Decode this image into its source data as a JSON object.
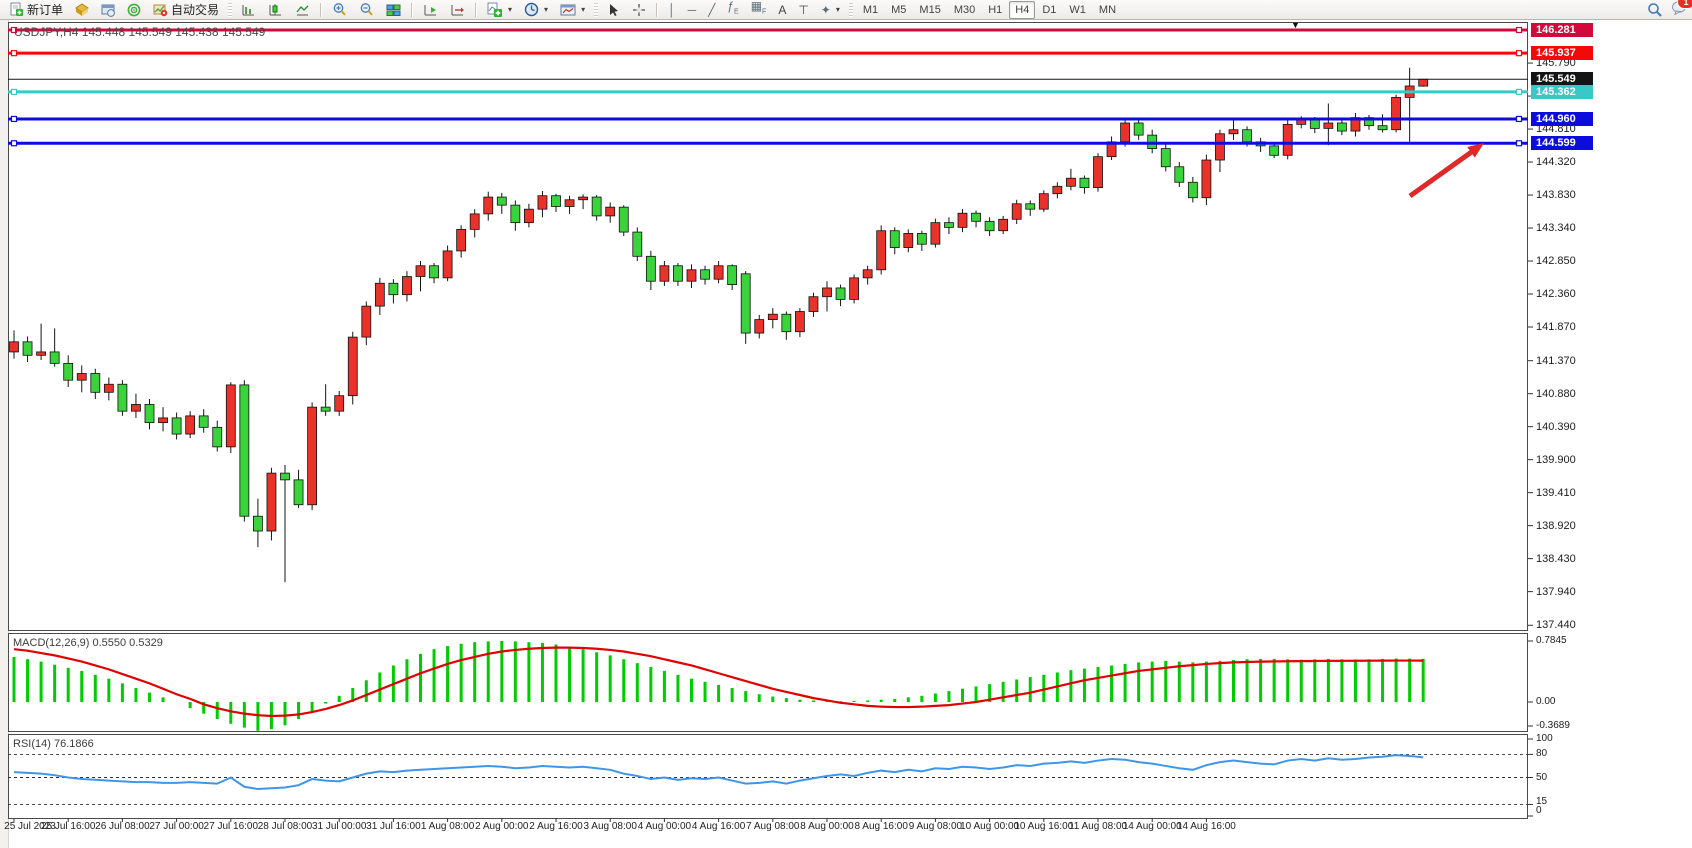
{
  "toolbar": {
    "new_order_label": "新订单",
    "autotrade_label": "自动交易",
    "timeframes": [
      "M1",
      "M5",
      "M15",
      "M30",
      "H1",
      "H4",
      "D1",
      "W1",
      "MN"
    ],
    "active_timeframe": "H4",
    "notification_count": "1",
    "icons": [
      "new-order-icon",
      "market-watch-icon",
      "data-window-icon",
      "navigator-icon",
      "autotrade-icon",
      "bar-chart-icon",
      "candlestick-chart-icon",
      "line-chart-icon",
      "zoom-in-icon",
      "zoom-out-icon",
      "tile-windows-icon",
      "auto-scroll-icon",
      "chart-shift-icon",
      "add-indicator-icon",
      "periods-icon",
      "templates-icon",
      "cursor-icon",
      "crosshair-icon",
      "vertical-line-icon",
      "horizontal-line-icon",
      "trendline-icon",
      "channel-icon",
      "fibonacci-icon",
      "text-icon",
      "text-label-icon",
      "shapes-icon",
      "search-icon",
      "notifications-icon"
    ]
  },
  "chart_data": {
    "type": "candlestick",
    "symbol": "USDJPY",
    "period": "H4",
    "title": "USDJPY,H4 145.448 145.549 145.438 145.549",
    "current_bar": {
      "open": "145.448",
      "high": "145.549",
      "low": "145.438",
      "close": "145.549"
    },
    "price_axis": {
      "ylim": [
        137.37,
        146.4
      ],
      "ticks": [
        "145.790",
        "145.300",
        "144.810",
        "144.320",
        "143.830",
        "143.340",
        "142.850",
        "142.360",
        "141.870",
        "141.370",
        "140.880",
        "140.390",
        "139.900",
        "139.410",
        "138.920",
        "138.430",
        "137.940",
        "137.440"
      ]
    },
    "hlines": [
      {
        "label": "146.281",
        "price": 146.281,
        "color": "#d20a3c",
        "width": 3,
        "handles": true
      },
      {
        "label": "145.937",
        "price": 145.937,
        "color": "#f40808",
        "width": 3,
        "handles": true
      },
      {
        "label": "145.549",
        "price": 145.549,
        "color": "#141414",
        "width": 1,
        "handles": false
      },
      {
        "label": "145.362",
        "price": 145.362,
        "color": "#38c8c8",
        "width": 3,
        "handles": true
      },
      {
        "label": "144.960",
        "price": 144.96,
        "color": "#0c0cdc",
        "width": 3,
        "handles": true
      },
      {
        "label": "144.599",
        "price": 144.599,
        "color": "#0c0cdc",
        "width": 3,
        "handles": true
      }
    ],
    "candles_ohlc": [
      [
        141.5,
        141.82,
        141.4,
        141.65
      ],
      [
        141.65,
        141.73,
        141.35,
        141.45
      ],
      [
        141.45,
        141.92,
        141.38,
        141.5
      ],
      [
        141.5,
        141.85,
        141.28,
        141.33
      ],
      [
        141.33,
        141.45,
        140.98,
        141.08
      ],
      [
        141.08,
        141.3,
        140.9,
        141.18
      ],
      [
        141.18,
        141.25,
        140.8,
        140.9
      ],
      [
        140.9,
        141.12,
        140.78,
        141.02
      ],
      [
        141.02,
        141.08,
        140.55,
        140.62
      ],
      [
        140.62,
        140.88,
        140.52,
        140.72
      ],
      [
        140.72,
        140.8,
        140.35,
        140.45
      ],
      [
        140.45,
        140.68,
        140.32,
        140.52
      ],
      [
        140.52,
        140.6,
        140.2,
        140.28
      ],
      [
        140.28,
        140.62,
        140.22,
        140.55
      ],
      [
        140.55,
        140.65,
        140.3,
        140.38
      ],
      [
        140.38,
        140.48,
        140.02,
        140.09
      ],
      [
        140.09,
        141.05,
        140.0,
        141.01
      ],
      [
        141.01,
        141.08,
        138.98,
        139.06
      ],
      [
        139.06,
        139.32,
        138.6,
        138.84
      ],
      [
        138.84,
        139.78,
        138.7,
        139.7
      ],
      [
        139.7,
        139.82,
        138.08,
        139.6
      ],
      [
        139.6,
        139.75,
        139.18,
        139.23
      ],
      [
        139.23,
        140.75,
        139.15,
        140.68
      ],
      [
        140.68,
        141.02,
        140.55,
        140.62
      ],
      [
        140.62,
        140.92,
        140.55,
        140.85
      ],
      [
        140.85,
        141.8,
        140.72,
        141.72
      ],
      [
        141.72,
        142.25,
        141.6,
        142.18
      ],
      [
        142.18,
        142.6,
        142.05,
        142.52
      ],
      [
        142.52,
        142.58,
        142.22,
        142.35
      ],
      [
        142.35,
        142.7,
        142.25,
        142.62
      ],
      [
        142.62,
        142.85,
        142.4,
        142.78
      ],
      [
        142.78,
        142.82,
        142.52,
        142.6
      ],
      [
        142.6,
        143.08,
        142.55,
        143.0
      ],
      [
        143.0,
        143.38,
        142.9,
        143.32
      ],
      [
        143.32,
        143.62,
        143.2,
        143.55
      ],
      [
        143.55,
        143.88,
        143.45,
        143.8
      ],
      [
        143.8,
        143.86,
        143.55,
        143.68
      ],
      [
        143.68,
        143.75,
        143.3,
        143.42
      ],
      [
        143.42,
        143.7,
        143.35,
        143.62
      ],
      [
        143.62,
        143.89,
        143.5,
        143.82
      ],
      [
        143.82,
        143.85,
        143.58,
        143.66
      ],
      [
        143.66,
        143.82,
        143.55,
        143.76
      ],
      [
        143.76,
        143.84,
        143.62,
        143.8
      ],
      [
        143.8,
        143.83,
        143.45,
        143.52
      ],
      [
        143.52,
        143.72,
        143.42,
        143.65
      ],
      [
        143.65,
        143.68,
        143.22,
        143.28
      ],
      [
        143.28,
        143.35,
        142.85,
        142.92
      ],
      [
        142.92,
        143.0,
        142.42,
        142.55
      ],
      [
        142.55,
        142.85,
        142.48,
        142.78
      ],
      [
        142.78,
        142.82,
        142.48,
        142.55
      ],
      [
        142.55,
        142.8,
        142.45,
        142.72
      ],
      [
        142.72,
        142.78,
        142.5,
        142.58
      ],
      [
        142.58,
        142.85,
        142.52,
        142.78
      ],
      [
        142.78,
        142.8,
        142.42,
        142.5
      ],
      [
        142.66,
        142.7,
        141.62,
        141.78
      ],
      [
        141.78,
        142.05,
        141.7,
        141.98
      ],
      [
        141.98,
        142.15,
        141.85,
        142.06
      ],
      [
        142.06,
        142.1,
        141.68,
        141.8
      ],
      [
        141.8,
        142.15,
        141.72,
        142.1
      ],
      [
        142.1,
        142.38,
        142.02,
        142.32
      ],
      [
        142.32,
        142.55,
        142.1,
        142.45
      ],
      [
        142.45,
        142.5,
        142.18,
        142.28
      ],
      [
        142.28,
        142.65,
        142.22,
        142.6
      ],
      [
        142.6,
        142.78,
        142.5,
        142.72
      ],
      [
        142.72,
        143.38,
        142.65,
        143.3
      ],
      [
        143.3,
        143.35,
        142.95,
        143.05
      ],
      [
        143.05,
        143.32,
        142.98,
        143.26
      ],
      [
        143.26,
        143.3,
        143.0,
        143.1
      ],
      [
        143.1,
        143.48,
        143.05,
        143.42
      ],
      [
        143.42,
        143.5,
        143.25,
        143.35
      ],
      [
        143.35,
        143.62,
        143.28,
        143.56
      ],
      [
        143.56,
        143.6,
        143.35,
        143.44
      ],
      [
        143.44,
        143.5,
        143.22,
        143.3
      ],
      [
        143.3,
        143.52,
        143.25,
        143.47
      ],
      [
        143.47,
        143.76,
        143.4,
        143.7
      ],
      [
        143.7,
        143.75,
        143.52,
        143.62
      ],
      [
        143.62,
        143.9,
        143.58,
        143.85
      ],
      [
        143.85,
        144.02,
        143.78,
        143.96
      ],
      [
        143.96,
        144.22,
        143.9,
        144.08
      ],
      [
        144.08,
        144.12,
        143.85,
        143.94
      ],
      [
        143.94,
        144.45,
        143.88,
        144.4
      ],
      [
        144.4,
        144.7,
        144.35,
        144.62
      ],
      [
        144.62,
        144.96,
        144.55,
        144.9
      ],
      [
        144.9,
        144.97,
        144.65,
        144.72
      ],
      [
        144.72,
        144.8,
        144.45,
        144.52
      ],
      [
        144.52,
        144.58,
        144.18,
        144.25
      ],
      [
        144.25,
        144.32,
        143.95,
        144.02
      ],
      [
        144.02,
        144.1,
        143.72,
        143.79
      ],
      [
        143.79,
        144.43,
        143.68,
        144.35
      ],
      [
        144.35,
        144.8,
        144.17,
        144.74
      ],
      [
        144.74,
        144.94,
        144.65,
        144.8
      ],
      [
        144.8,
        144.85,
        144.55,
        144.62
      ],
      [
        144.62,
        144.68,
        144.47,
        144.56
      ],
      [
        144.56,
        144.6,
        144.38,
        144.42
      ],
      [
        144.42,
        144.94,
        144.36,
        144.88
      ],
      [
        144.88,
        145.0,
        144.82,
        144.97
      ],
      [
        144.97,
        144.99,
        144.75,
        144.82
      ],
      [
        144.82,
        145.19,
        144.57,
        144.9
      ],
      [
        144.9,
        144.94,
        144.72,
        144.78
      ],
      [
        144.78,
        145.05,
        144.7,
        144.98
      ],
      [
        144.98,
        145.02,
        144.8,
        144.86
      ],
      [
        144.86,
        145.03,
        144.76,
        144.8
      ],
      [
        144.8,
        145.32,
        144.76,
        145.28
      ],
      [
        145.28,
        145.72,
        144.62,
        145.45
      ],
      [
        145.448,
        145.549,
        145.438,
        145.549
      ]
    ],
    "macd": {
      "label": "MACD(12,26,9) 0.5550 0.5329",
      "params": "12,26,9",
      "current_values": [
        "0.5550",
        "0.5329"
      ],
      "scale_labels": [
        "0.7845",
        "0.00",
        "-0.3689"
      ],
      "ylim": [
        -0.373,
        0.888
      ],
      "hist": [
        0.58,
        0.55,
        0.52,
        0.48,
        0.44,
        0.4,
        0.35,
        0.3,
        0.24,
        0.18,
        0.12,
        0.06,
        0.0,
        -0.08,
        -0.15,
        -0.22,
        -0.28,
        -0.33,
        -0.37,
        -0.35,
        -0.3,
        -0.22,
        -0.12,
        -0.02,
        0.08,
        0.18,
        0.28,
        0.38,
        0.47,
        0.55,
        0.62,
        0.68,
        0.72,
        0.75,
        0.77,
        0.78,
        0.785,
        0.78,
        0.77,
        0.76,
        0.74,
        0.71,
        0.68,
        0.64,
        0.6,
        0.55,
        0.5,
        0.45,
        0.4,
        0.35,
        0.3,
        0.26,
        0.22,
        0.18,
        0.14,
        0.1,
        0.07,
        0.05,
        0.03,
        0.02,
        0.015,
        0.01,
        0.015,
        0.02,
        0.03,
        0.04,
        0.06,
        0.08,
        0.11,
        0.14,
        0.17,
        0.2,
        0.23,
        0.26,
        0.29,
        0.32,
        0.35,
        0.38,
        0.41,
        0.43,
        0.45,
        0.47,
        0.49,
        0.51,
        0.52,
        0.53,
        0.52,
        0.51,
        0.52,
        0.53,
        0.54,
        0.55,
        0.555,
        0.555,
        0.55,
        0.545,
        0.55,
        0.555,
        0.55,
        0.545,
        0.55,
        0.555,
        0.56,
        0.558,
        0.555
      ],
      "signal": [
        0.68,
        0.66,
        0.63,
        0.6,
        0.56,
        0.52,
        0.47,
        0.42,
        0.36,
        0.3,
        0.24,
        0.17,
        0.1,
        0.04,
        -0.03,
        -0.08,
        -0.12,
        -0.15,
        -0.17,
        -0.18,
        -0.175,
        -0.16,
        -0.13,
        -0.09,
        -0.04,
        0.02,
        0.09,
        0.16,
        0.23,
        0.3,
        0.37,
        0.43,
        0.49,
        0.54,
        0.58,
        0.62,
        0.65,
        0.67,
        0.685,
        0.695,
        0.7,
        0.7,
        0.695,
        0.685,
        0.67,
        0.65,
        0.62,
        0.59,
        0.55,
        0.51,
        0.47,
        0.42,
        0.37,
        0.32,
        0.27,
        0.22,
        0.17,
        0.13,
        0.09,
        0.05,
        0.02,
        -0.01,
        -0.03,
        -0.05,
        -0.06,
        -0.065,
        -0.065,
        -0.06,
        -0.05,
        -0.04,
        -0.02,
        0.0,
        0.03,
        0.06,
        0.09,
        0.12,
        0.16,
        0.2,
        0.24,
        0.28,
        0.31,
        0.34,
        0.37,
        0.4,
        0.42,
        0.44,
        0.46,
        0.475,
        0.49,
        0.5,
        0.51,
        0.515,
        0.52,
        0.522,
        0.524,
        0.526,
        0.528,
        0.529,
        0.53,
        0.531,
        0.532,
        0.5329,
        0.533,
        0.533,
        0.5329
      ]
    },
    "rsi": {
      "label": "RSI(14) 76.1866",
      "period": "14",
      "current_value": "76.1866",
      "scale_labels": [
        "100",
        "80",
        "50",
        "15",
        "0"
      ],
      "levels": [
        80,
        50,
        15
      ],
      "ylim": [
        0,
        100
      ],
      "values": [
        57,
        56,
        55,
        53,
        50,
        48,
        47,
        46,
        45,
        44,
        44,
        43,
        43,
        44,
        43,
        42,
        50,
        38,
        35,
        36,
        37,
        40,
        48,
        46,
        45,
        50,
        55,
        58,
        57,
        59,
        60,
        61,
        62,
        63,
        64,
        65,
        64,
        62,
        63,
        65,
        64,
        63,
        64,
        62,
        60,
        55,
        52,
        48,
        50,
        47,
        49,
        48,
        50,
        46,
        42,
        43,
        45,
        42,
        46,
        49,
        52,
        54,
        52,
        56,
        59,
        57,
        60,
        58,
        62,
        61,
        64,
        63,
        61,
        63,
        66,
        65,
        68,
        69,
        71,
        69,
        72,
        74,
        73,
        70,
        68,
        65,
        62,
        60,
        66,
        70,
        72,
        70,
        68,
        67,
        72,
        74,
        72,
        75,
        73,
        74,
        76,
        77,
        79,
        78,
        76.19
      ]
    },
    "time_axis": {
      "labels": [
        "25 Jul 2023",
        "25 Jul 16:00",
        "26 Jul 08:00",
        "27 Jul 00:00",
        "27 Jul 16:00",
        "28 Jul 08:00",
        "31 Jul 00:00",
        "31 Jul 16:00",
        "1 Aug 08:00",
        "2 Aug 00:00",
        "2 Aug 16:00",
        "3 Aug 08:00",
        "4 Aug 00:00",
        "4 Aug 16:00",
        "7 Aug 08:00",
        "8 Aug 00:00",
        "8 Aug 16:00",
        "9 Aug 08:00",
        "10 Aug 00:00",
        "10 Aug 16:00",
        "11 Aug 08:00",
        "14 Aug 00:00",
        "14 Aug 16:00"
      ],
      "bars_per_label": 4
    },
    "annotation": {
      "type": "arrow",
      "color": "#e02828",
      "direction": "up-right"
    },
    "colors": {
      "bull_candle": "#e8322a",
      "bear_candle": "#3bd33b",
      "wick": "#141414",
      "macd_hist": "#00cc00",
      "macd_signal": "#e00000",
      "rsi_line": "#3f96e8",
      "badge_text": "#ffffff",
      "current_price_badge": "#141414"
    }
  }
}
